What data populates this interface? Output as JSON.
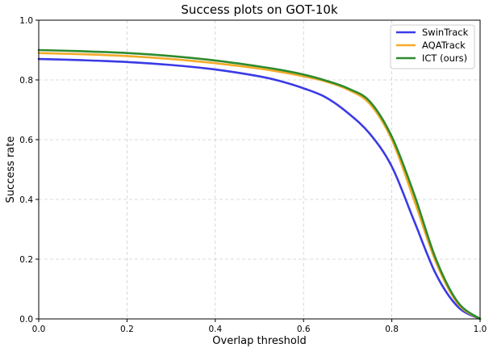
{
  "chart_data": {
    "type": "line",
    "title": "Success plots on GOT-10k",
    "xlabel": "Overlap threshold",
    "ylabel": "Success rate",
    "xlim": [
      0.0,
      1.0
    ],
    "ylim": [
      0.0,
      1.0
    ],
    "xticks": [
      0.0,
      0.2,
      0.4,
      0.6,
      0.8,
      1.0
    ],
    "yticks": [
      0.0,
      0.2,
      0.4,
      0.6,
      0.8,
      1.0
    ],
    "xtick_labels": [
      "0.0",
      "0.2",
      "0.4",
      "0.6",
      "0.8",
      "1.0"
    ],
    "ytick_labels": [
      "0.0",
      "0.2",
      "0.4",
      "0.6",
      "0.8",
      "1.0"
    ],
    "grid": true,
    "legend_position": "top-right",
    "series": [
      {
        "name": "SwinTrack",
        "color": "#3a3ae6",
        "x": [
          0.0,
          0.1,
          0.2,
          0.3,
          0.4,
          0.5,
          0.55,
          0.6,
          0.65,
          0.7,
          0.75,
          0.8,
          0.85,
          0.9,
          0.95,
          1.0
        ],
        "y": [
          0.87,
          0.866,
          0.86,
          0.85,
          0.835,
          0.812,
          0.795,
          0.772,
          0.742,
          0.69,
          0.62,
          0.51,
          0.33,
          0.15,
          0.04,
          0.0
        ]
      },
      {
        "name": "AQATrack",
        "color": "#f5aa2a",
        "x": [
          0.0,
          0.1,
          0.2,
          0.3,
          0.4,
          0.5,
          0.55,
          0.6,
          0.65,
          0.7,
          0.75,
          0.8,
          0.85,
          0.9,
          0.95,
          1.0
        ],
        "y": [
          0.89,
          0.886,
          0.88,
          0.87,
          0.856,
          0.838,
          0.826,
          0.812,
          0.795,
          0.768,
          0.72,
          0.6,
          0.4,
          0.19,
          0.05,
          0.0
        ]
      },
      {
        "name": "ICT (ours)",
        "color": "#2e8b2e",
        "x": [
          0.0,
          0.1,
          0.2,
          0.3,
          0.4,
          0.5,
          0.55,
          0.6,
          0.65,
          0.7,
          0.75,
          0.8,
          0.85,
          0.9,
          0.95,
          1.0
        ],
        "y": [
          0.9,
          0.896,
          0.89,
          0.88,
          0.865,
          0.845,
          0.833,
          0.818,
          0.798,
          0.772,
          0.728,
          0.61,
          0.42,
          0.2,
          0.055,
          0.0
        ]
      }
    ]
  }
}
